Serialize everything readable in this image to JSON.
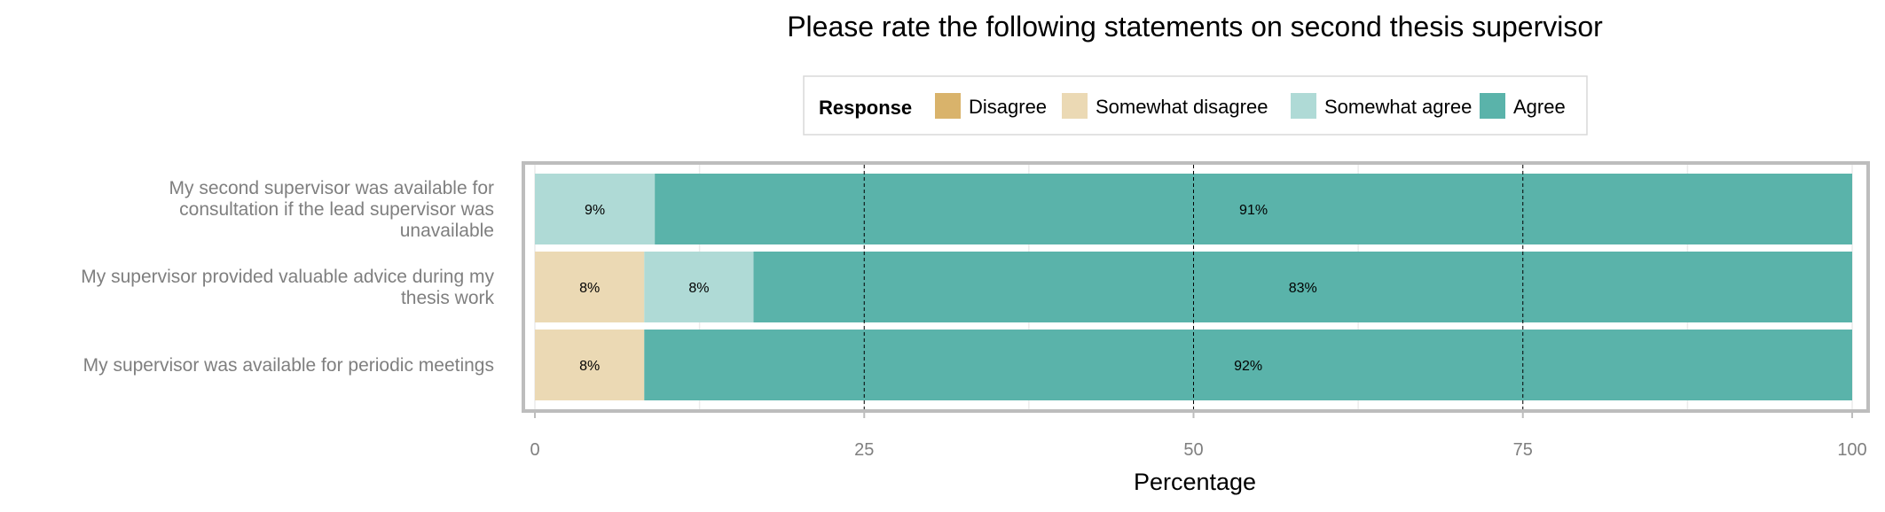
{
  "chart_data": {
    "type": "bar",
    "orientation": "horizontal",
    "stacked": true,
    "title": "Please rate the following statements on second thesis supervisor",
    "xlabel": "Percentage",
    "ylabel": "",
    "xlim": [
      0,
      100
    ],
    "x_ticks": [
      "0",
      "25",
      "50",
      "75",
      "100"
    ],
    "grid": true,
    "legend": {
      "title": "Response",
      "placement": "top",
      "entries": [
        "Disagree",
        "Somewhat disagree",
        "Somewhat agree",
        "Agree"
      ]
    },
    "categories": [
      [
        "My second supervisor was available for",
        "consultation if the lead supervisor was",
        "unavailable"
      ],
      [
        "My supervisor provided valuable advice during my",
        "thesis work"
      ],
      [
        "My supervisor was available for periodic meetings"
      ]
    ],
    "series": [
      {
        "name": "Disagree",
        "color": "#d9b36b",
        "values": [
          0,
          0,
          0
        ],
        "labels": [
          "",
          "",
          ""
        ]
      },
      {
        "name": "Somewhat disagree",
        "color": "#ebd9b4",
        "values": [
          0,
          8.3,
          8.3
        ],
        "labels": [
          "",
          "8%",
          "8%"
        ]
      },
      {
        "name": "Somewhat agree",
        "color": "#afdad6",
        "values": [
          9.1,
          8.3,
          0
        ],
        "labels": [
          "9%",
          "8%",
          ""
        ]
      },
      {
        "name": "Agree",
        "color": "#5ab3aa",
        "values": [
          90.9,
          83.4,
          91.7
        ],
        "labels": [
          "91%",
          "83%",
          "92%"
        ]
      }
    ]
  }
}
